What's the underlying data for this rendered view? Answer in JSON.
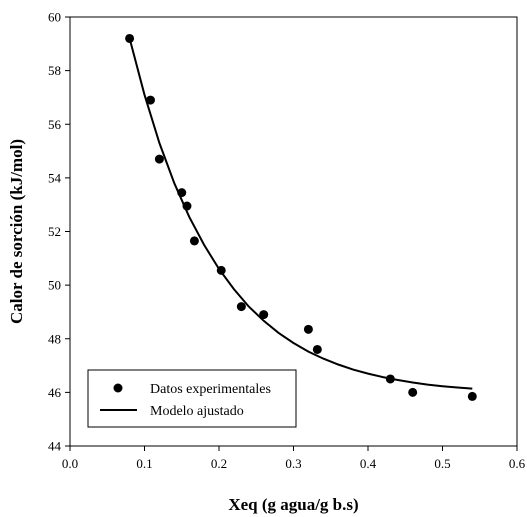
{
  "chart_data": {
    "type": "scatter",
    "xlabel": "Xeq (g agua/g b.s)",
    "ylabel": "Calor de sorción (kJ/mol)",
    "xlim": [
      0.0,
      0.6
    ],
    "ylim": [
      44,
      60
    ],
    "xticks": [
      "0.0",
      "0.1",
      "0.2",
      "0.3",
      "0.4",
      "0.5",
      "0.6"
    ],
    "yticks": [
      "44",
      "46",
      "48",
      "50",
      "52",
      "54",
      "56",
      "58",
      "60"
    ],
    "grid": false,
    "legend_position": "bottom-left",
    "series": [
      {
        "name": "Datos experimentales",
        "kind": "scatter",
        "color": "#000000",
        "x": [
          0.08,
          0.108,
          0.12,
          0.15,
          0.157,
          0.167,
          0.203,
          0.23,
          0.26,
          0.32,
          0.332,
          0.43,
          0.46,
          0.54
        ],
        "y": [
          59.2,
          56.9,
          54.7,
          53.45,
          52.95,
          51.65,
          50.55,
          49.2,
          48.9,
          48.35,
          47.6,
          46.5,
          46.0,
          45.85
        ]
      },
      {
        "name": "Modelo ajustado",
        "kind": "line",
        "color": "#000000",
        "x": [
          0.08,
          0.1,
          0.12,
          0.14,
          0.16,
          0.18,
          0.2,
          0.22,
          0.24,
          0.26,
          0.28,
          0.3,
          0.32,
          0.34,
          0.36,
          0.38,
          0.4,
          0.42,
          0.44,
          0.46,
          0.48,
          0.5,
          0.52,
          0.54
        ],
        "y": [
          59.2,
          57.1,
          55.3,
          53.8,
          52.55,
          51.5,
          50.6,
          49.85,
          49.2,
          48.67,
          48.22,
          47.84,
          47.52,
          47.26,
          47.04,
          46.85,
          46.7,
          46.57,
          46.46,
          46.37,
          46.29,
          46.23,
          46.18,
          46.14
        ]
      }
    ]
  }
}
